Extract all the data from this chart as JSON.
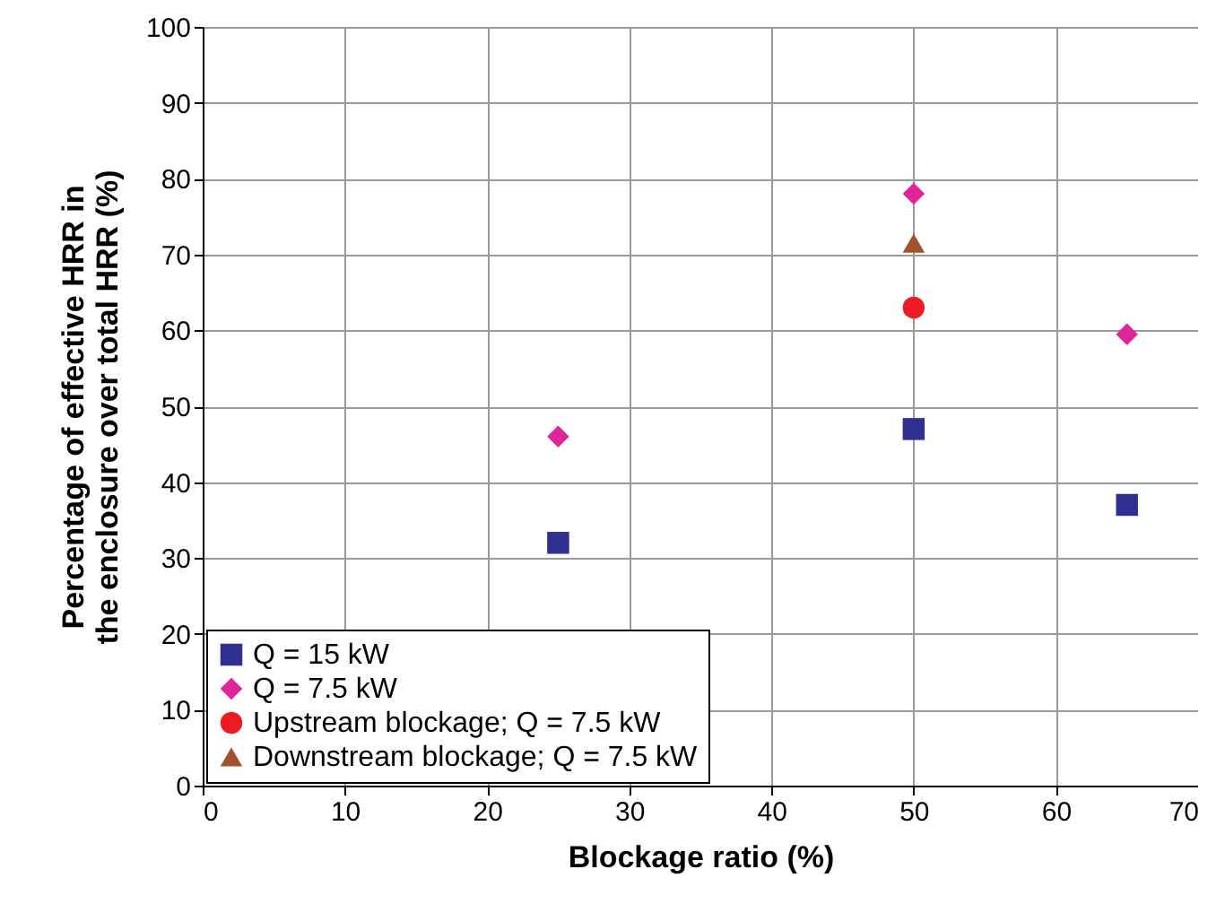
{
  "chart_data": {
    "type": "scatter",
    "xlabel": "Blockage ratio (%)",
    "ylabel": "Percentage of effective HRR in the enclosure over total HRR (%)",
    "xlim": [
      0,
      70
    ],
    "xticks": [
      0,
      10,
      20,
      30,
      40,
      50,
      60,
      70
    ],
    "ylim": [
      0,
      100
    ],
    "yticks": [
      0,
      10,
      20,
      30,
      40,
      50,
      60,
      70,
      80,
      90,
      100
    ],
    "grid": true,
    "legend": "bottom left",
    "series": [
      {
        "name": "Q = 15 kW",
        "color": "#2e3192",
        "marker": "square",
        "x": [
          25,
          50,
          65
        ],
        "values": [
          32,
          47,
          37
        ]
      },
      {
        "name": "Q = 7.5 kW",
        "color": "#e0259b",
        "marker": "diamond",
        "x": [
          25,
          50,
          65
        ],
        "values": [
          46,
          78,
          59.5
        ]
      },
      {
        "name": "Upstream blockage; Q = 7.5 kW",
        "color": "#ed1c24",
        "marker": "circle",
        "x": [
          50
        ],
        "values": [
          63
        ]
      },
      {
        "name": "Downstream blockage; Q = 7.5 kW",
        "color": "#a0522d",
        "marker": "triangle",
        "x": [
          50
        ],
        "values": [
          71.5
        ]
      }
    ]
  }
}
